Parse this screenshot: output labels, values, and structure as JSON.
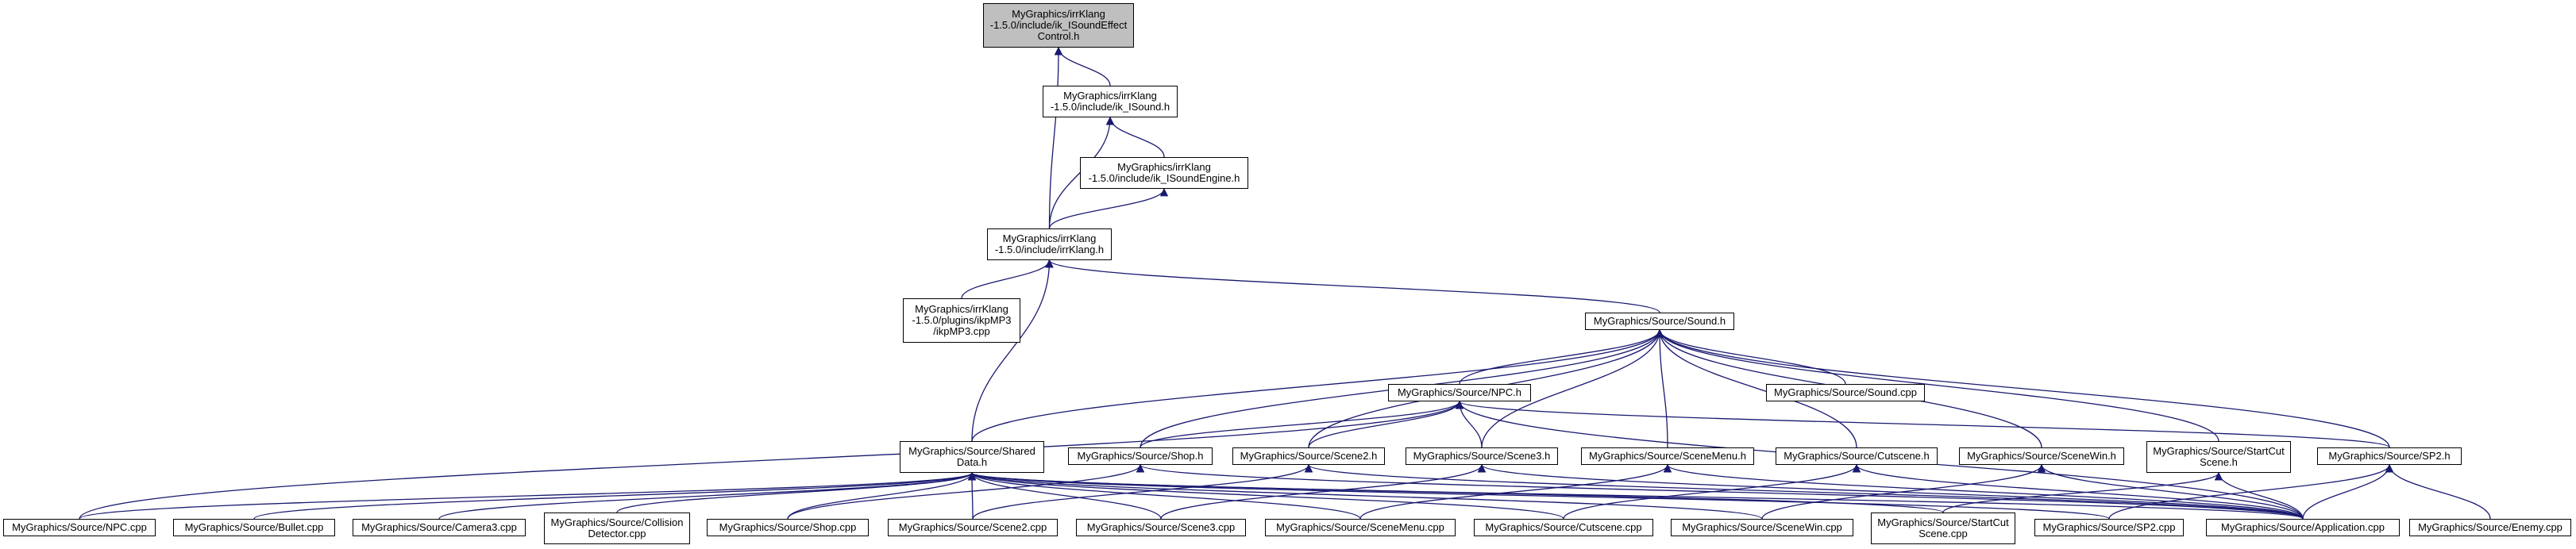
{
  "diagram": {
    "root_fill": "#bfbfbf",
    "edge_color": "#191970",
    "nodes": [
      {
        "id": "n0",
        "label": "MyGraphics/irrKlang\n-1.5.0/include/ik_ISoundEffect\nControl.h",
        "root": true
      },
      {
        "id": "n1",
        "label": "MyGraphics/irrKlang\n-1.5.0/include/ik_ISound.h"
      },
      {
        "id": "n2",
        "label": "MyGraphics/irrKlang\n-1.5.0/include/ik_ISoundEngine.h"
      },
      {
        "id": "n3",
        "label": "MyGraphics/irrKlang\n-1.5.0/include/irrKlang.h"
      },
      {
        "id": "n4",
        "label": "MyGraphics/irrKlang\n-1.5.0/plugins/ikpMP3\n/ikpMP3.cpp"
      },
      {
        "id": "n5",
        "label": "MyGraphics/Source/Sound.h"
      },
      {
        "id": "n6",
        "label": "MyGraphics/Source/Shared\nData.h"
      },
      {
        "id": "n7",
        "label": "MyGraphics/Source/NPC.h"
      },
      {
        "id": "n8",
        "label": "MyGraphics/Source/Sound.cpp"
      },
      {
        "id": "n9",
        "label": "MyGraphics/Source/Shop.h"
      },
      {
        "id": "n10",
        "label": "MyGraphics/Source/Scene2.h"
      },
      {
        "id": "n11",
        "label": "MyGraphics/Source/Scene3.h"
      },
      {
        "id": "n12",
        "label": "MyGraphics/Source/SceneMenu.h"
      },
      {
        "id": "n13",
        "label": "MyGraphics/Source/Cutscene.h"
      },
      {
        "id": "n14",
        "label": "MyGraphics/Source/SceneWin.h"
      },
      {
        "id": "n15",
        "label": "MyGraphics/Source/StartCut\nScene.h"
      },
      {
        "id": "n16",
        "label": "MyGraphics/Source/SP2.h"
      },
      {
        "id": "n17",
        "label": "MyGraphics/Source/NPC.cpp"
      },
      {
        "id": "n18",
        "label": "MyGraphics/Source/Bullet.cpp"
      },
      {
        "id": "n19",
        "label": "MyGraphics/Source/Camera3.cpp"
      },
      {
        "id": "n20",
        "label": "MyGraphics/Source/Collision\nDetector.cpp"
      },
      {
        "id": "n21",
        "label": "MyGraphics/Source/Shop.cpp"
      },
      {
        "id": "n22",
        "label": "MyGraphics/Source/Scene2.cpp"
      },
      {
        "id": "n23",
        "label": "MyGraphics/Source/Scene3.cpp"
      },
      {
        "id": "n24",
        "label": "MyGraphics/Source/SceneMenu.cpp"
      },
      {
        "id": "n25",
        "label": "MyGraphics/Source/Cutscene.cpp"
      },
      {
        "id": "n26",
        "label": "MyGraphics/Source/SceneWin.cpp"
      },
      {
        "id": "n27",
        "label": "MyGraphics/Source/StartCut\nScene.cpp"
      },
      {
        "id": "n28",
        "label": "MyGraphics/Source/SP2.cpp"
      },
      {
        "id": "n29",
        "label": "MyGraphics/Source/Application.cpp"
      },
      {
        "id": "n30",
        "label": "MyGraphics/Source/Enemy.cpp"
      }
    ],
    "edges": [
      [
        "n1",
        "n0"
      ],
      [
        "n3",
        "n0"
      ],
      [
        "n2",
        "n1"
      ],
      [
        "n3",
        "n1"
      ],
      [
        "n3",
        "n2"
      ],
      [
        "n4",
        "n3"
      ],
      [
        "n5",
        "n3"
      ],
      [
        "n6",
        "n3"
      ],
      [
        "n6",
        "n5"
      ],
      [
        "n7",
        "n5"
      ],
      [
        "n8",
        "n5"
      ],
      [
        "n9",
        "n5"
      ],
      [
        "n10",
        "n5"
      ],
      [
        "n11",
        "n5"
      ],
      [
        "n12",
        "n5"
      ],
      [
        "n13",
        "n5"
      ],
      [
        "n14",
        "n5"
      ],
      [
        "n15",
        "n5"
      ],
      [
        "n16",
        "n5"
      ],
      [
        "n9",
        "n7"
      ],
      [
        "n10",
        "n7"
      ],
      [
        "n11",
        "n7"
      ],
      [
        "n16",
        "n7"
      ],
      [
        "n17",
        "n7"
      ],
      [
        "n29",
        "n7"
      ],
      [
        "n17",
        "n6"
      ],
      [
        "n18",
        "n6"
      ],
      [
        "n19",
        "n6"
      ],
      [
        "n20",
        "n6"
      ],
      [
        "n21",
        "n6"
      ],
      [
        "n22",
        "n6"
      ],
      [
        "n23",
        "n6"
      ],
      [
        "n24",
        "n6"
      ],
      [
        "n25",
        "n6"
      ],
      [
        "n26",
        "n6"
      ],
      [
        "n27",
        "n6"
      ],
      [
        "n28",
        "n6"
      ],
      [
        "n29",
        "n6"
      ],
      [
        "n21",
        "n9"
      ],
      [
        "n29",
        "n9"
      ],
      [
        "n22",
        "n10"
      ],
      [
        "n29",
        "n10"
      ],
      [
        "n23",
        "n11"
      ],
      [
        "n29",
        "n11"
      ],
      [
        "n24",
        "n12"
      ],
      [
        "n29",
        "n12"
      ],
      [
        "n25",
        "n13"
      ],
      [
        "n29",
        "n13"
      ],
      [
        "n26",
        "n14"
      ],
      [
        "n29",
        "n14"
      ],
      [
        "n27",
        "n15"
      ],
      [
        "n29",
        "n15"
      ],
      [
        "n28",
        "n16"
      ],
      [
        "n29",
        "n16"
      ],
      [
        "n30",
        "n16"
      ]
    ]
  }
}
